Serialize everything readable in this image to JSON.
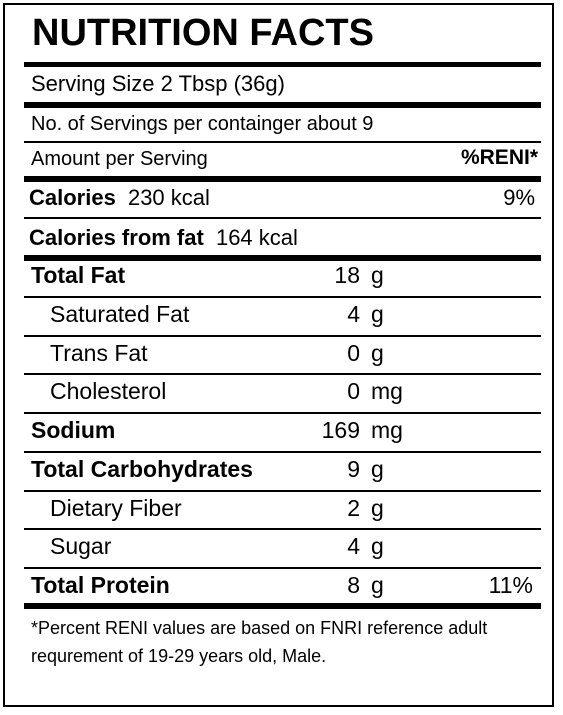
{
  "label": {
    "title": "NUTRITION FACTS",
    "serving_size": "Serving Size 2 Tbsp (36g)",
    "servings_per_container": "No. of Servings per containger about 9",
    "amount_per_serving": "Amount per Serving",
    "reni_header": "%RENI*",
    "calories_label": "Calories",
    "calories_value": "230 kcal",
    "calories_pct": "9%",
    "calories_fat_label": "Calories from fat",
    "calories_fat_value": "164 kcal"
  },
  "nutrients": [
    {
      "name": "Total Fat",
      "amount": "18",
      "unit": "g",
      "pct": "",
      "bold": true,
      "indent": false
    },
    {
      "name": "Saturated Fat",
      "amount": "4",
      "unit": "g",
      "pct": "",
      "bold": false,
      "indent": true
    },
    {
      "name": "Trans Fat",
      "amount": "0",
      "unit": "g",
      "pct": "",
      "bold": false,
      "indent": true
    },
    {
      "name": "Cholesterol",
      "amount": "0",
      "unit": "mg",
      "pct": "",
      "bold": false,
      "indent": true
    },
    {
      "name": "Sodium",
      "amount": "169",
      "unit": "mg",
      "pct": "",
      "bold": true,
      "indent": false
    },
    {
      "name": "Total Carbohydrates",
      "amount": "9",
      "unit": "g",
      "pct": "",
      "bold": true,
      "indent": false
    },
    {
      "name": "Dietary Fiber",
      "amount": "2",
      "unit": "g",
      "pct": "",
      "bold": false,
      "indent": true
    },
    {
      "name": "Sugar",
      "amount": "4",
      "unit": "g",
      "pct": "",
      "bold": false,
      "indent": true
    },
    {
      "name": "Total Protein",
      "amount": "8",
      "unit": "g",
      "pct": "11%",
      "bold": true,
      "indent": false
    }
  ],
  "footnote": "*Percent RENI values are based on FNRI reference adult requrement of 19-29 years old, Male."
}
